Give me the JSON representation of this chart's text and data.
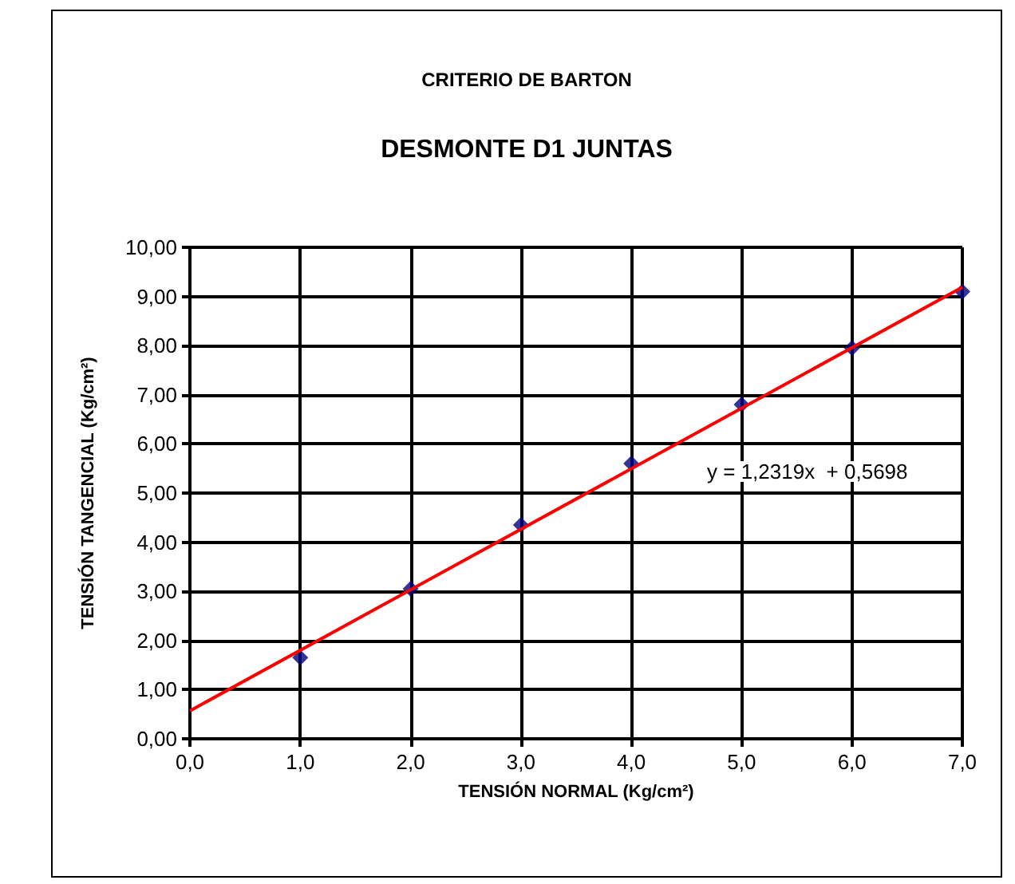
{
  "chart_data": {
    "type": "scatter",
    "title": "CRITERIO DE BARTON",
    "subtitle": "DESMONTE D1 JUNTAS",
    "xlabel": "TENSIÓN NORMAL (Kg/cm²)",
    "ylabel": "TENSIÓN TANGENCIAL (Kg/cm²)",
    "series": [
      {
        "color": "#000080",
        "marker": "diamond",
        "x": [
          1,
          2,
          3,
          4,
          5,
          6,
          7
        ],
        "values": [
          1.65,
          3.05,
          4.35,
          5.6,
          6.8,
          7.95,
          9.1
        ]
      },
      {
        "type": "line",
        "color": "#ff0000",
        "marker": "none",
        "x": [
          0,
          7
        ],
        "values": [
          0.57,
          9.19
        ]
      }
    ],
    "annotations": [
      "y = 1,2319x  + 0,5698"
    ],
    "xlim": [
      0,
      7
    ],
    "ylim": [
      0,
      10
    ],
    "xticks": [
      {
        "value": 0,
        "label": "0,0"
      },
      {
        "value": 1,
        "label": "1,0"
      },
      {
        "value": 2,
        "label": "2,0"
      },
      {
        "value": 3,
        "label": "3,0"
      },
      {
        "value": 4,
        "label": "4,0"
      },
      {
        "value": 5,
        "label": "5,0"
      },
      {
        "value": 6,
        "label": "6,0"
      },
      {
        "value": 7,
        "label": "7,0"
      }
    ],
    "yticks": [
      {
        "value": 0,
        "label": "0,00"
      },
      {
        "value": 1,
        "label": "1,00"
      },
      {
        "value": 2,
        "label": "2,00"
      },
      {
        "value": 3,
        "label": "3,00"
      },
      {
        "value": 4,
        "label": "4,00"
      },
      {
        "value": 5,
        "label": "5,00"
      },
      {
        "value": 6,
        "label": "6,00"
      },
      {
        "value": 7,
        "label": "7,00"
      },
      {
        "value": 8,
        "label": "8,00"
      },
      {
        "value": 9,
        "label": "9,00"
      },
      {
        "value": 10,
        "label": "10,00"
      }
    ],
    "grid": true
  }
}
